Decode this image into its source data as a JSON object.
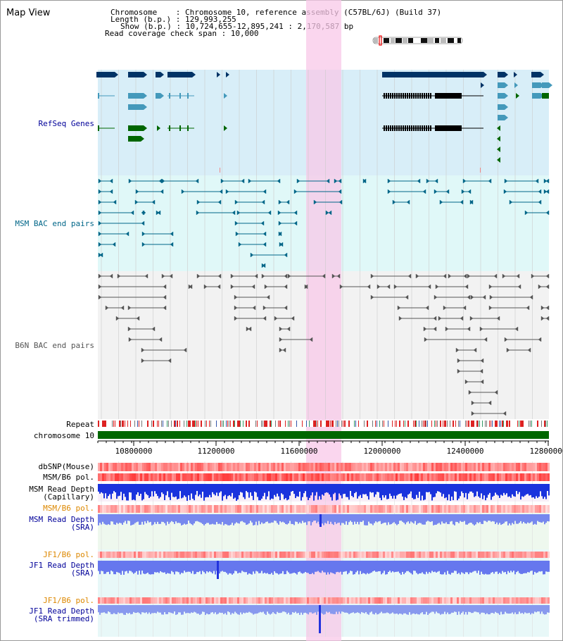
{
  "header": {
    "title": "Map View",
    "info_line1": "Chromosome    : Chromosome 10, reference assembly (C57BL/6J) (Build 37)",
    "info_line2": "Length (b.p.) : 129,993,255",
    "info_line3": "Show (b.p.) : 10,724,655-12,895,241 : 2,170,587 bp",
    "info_line4": "Read coverage check span : 10,000"
  },
  "tracks": {
    "refseq": "RefSeq Genes",
    "msm_bac": "MSM BAC end pairs",
    "b6n_bac": "B6N BAC end pairs",
    "repeat": "Repeat",
    "chromosome": "chromosome 10",
    "dbsnp": "dbSNP(Mouse)",
    "msm_b6_pol_1": "MSM/B6 pol.",
    "msm_read_depth_cap": "MSM Read Depth\n(Capillary)",
    "msm_b6_pol_2": "MSM/B6 pol.",
    "msm_read_depth_sra": "MSM Read Depth\n(SRA)",
    "jf1_b6_pol_1": "JF1/B6 pol.",
    "jf1_read_depth_sra": "JF1 Read Depth\n(SRA)",
    "jf1_b6_pol_2": "JF1/B6 pol.",
    "jf1_read_depth_trim": "JF1 Read Depth\n(SRA trimmed)"
  },
  "axis": {
    "ticks": [
      "10800000",
      "11200000",
      "11600000",
      "12000000",
      "12400000",
      "12800000"
    ]
  },
  "colors": {
    "refseq_bg": "#d8eef8",
    "msm_bg": "#e0f8f8",
    "b6n_bg": "#f2f2f2",
    "highlight": "#f8c8e8",
    "gene_dark": "#003366",
    "gene_mid": "#4499bb",
    "gene_green": "#006600",
    "msm_line": "#006688",
    "b6n_line": "#555555",
    "depth_blue": "#2233dd",
    "depth_light": "#7788ee",
    "label_blue": "#000099",
    "label_teal": "#006688",
    "label_orange": "#dd8800"
  }
}
